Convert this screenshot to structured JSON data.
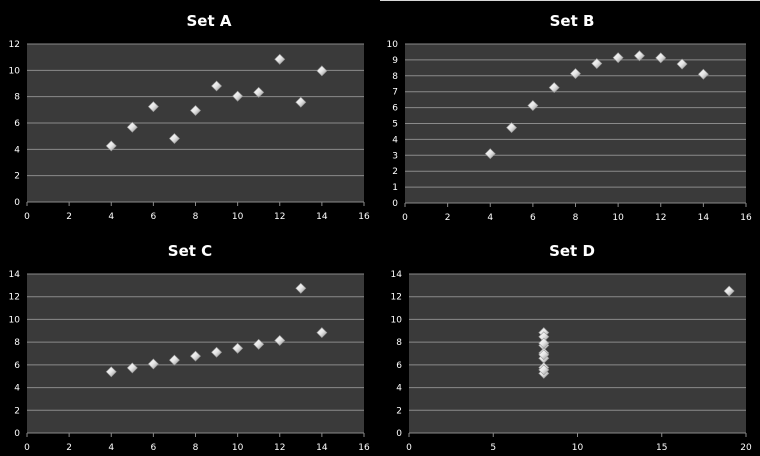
{
  "chart_data": [
    {
      "type": "scatter",
      "title": "Set A",
      "xlim": [
        0,
        16
      ],
      "xticks": [
        0,
        2,
        4,
        6,
        8,
        10,
        12,
        14,
        16
      ],
      "ylim": [
        0,
        12
      ],
      "yticks": [
        0,
        2,
        4,
        6,
        8,
        10,
        12
      ],
      "grid": true,
      "legend": "none",
      "x": [
        4,
        5,
        6,
        7,
        8,
        9,
        10,
        11,
        12,
        13,
        14
      ],
      "y": [
        4.26,
        5.68,
        7.24,
        4.82,
        6.95,
        8.81,
        8.04,
        8.33,
        10.84,
        7.58,
        9.96
      ]
    },
    {
      "type": "scatter",
      "title": "Set B",
      "xlim": [
        0,
        16
      ],
      "xticks": [
        0,
        2,
        4,
        6,
        8,
        10,
        12,
        14,
        16
      ],
      "ylim": [
        0,
        10
      ],
      "yticks": [
        0,
        1,
        2,
        3,
        4,
        5,
        6,
        7,
        8,
        9,
        10
      ],
      "grid": true,
      "legend": "none",
      "x": [
        4,
        5,
        6,
        7,
        8,
        9,
        10,
        11,
        12,
        13,
        14
      ],
      "y": [
        3.1,
        4.74,
        6.13,
        7.26,
        8.14,
        8.77,
        9.14,
        9.26,
        9.13,
        8.74,
        8.1
      ]
    },
    {
      "type": "scatter",
      "title": "Set C",
      "xlim": [
        0,
        16
      ],
      "xticks": [
        0,
        2,
        4,
        6,
        8,
        10,
        12,
        14,
        16
      ],
      "ylim": [
        0,
        14
      ],
      "yticks": [
        0,
        2,
        4,
        6,
        8,
        10,
        12,
        14
      ],
      "grid": true,
      "legend": "none",
      "x": [
        4,
        5,
        6,
        7,
        8,
        9,
        10,
        11,
        12,
        13,
        14
      ],
      "y": [
        5.39,
        5.73,
        6.08,
        6.42,
        6.77,
        7.11,
        7.46,
        7.81,
        8.15,
        12.74,
        8.84
      ]
    },
    {
      "type": "scatter",
      "title": "Set D",
      "xlim": [
        0,
        20
      ],
      "xticks": [
        0,
        5,
        10,
        15,
        20
      ],
      "ylim": [
        0,
        14
      ],
      "yticks": [
        0,
        2,
        4,
        6,
        8,
        10,
        12,
        14
      ],
      "grid": true,
      "legend": "none",
      "x": [
        8,
        8,
        8,
        8,
        8,
        8,
        8,
        8,
        8,
        8,
        19
      ],
      "y": [
        6.58,
        5.76,
        7.71,
        8.84,
        8.47,
        7.04,
        5.25,
        5.56,
        7.91,
        6.89,
        12.5
      ]
    }
  ],
  "colors": {
    "page_background": "#000000",
    "plot_background": "#3a3a3a",
    "gridline": "#8a8a8a",
    "text": "#ffffff",
    "marker_light": "#ffffff",
    "marker_dark": "#8c8c8c"
  },
  "marker_shape": "diamond"
}
